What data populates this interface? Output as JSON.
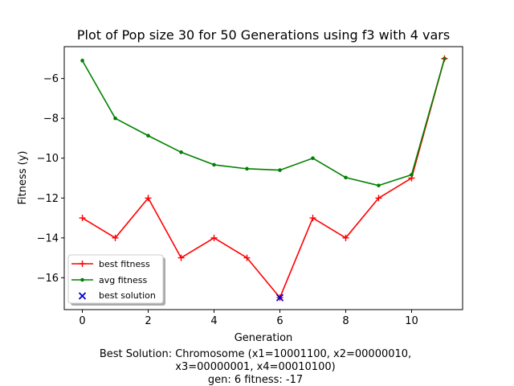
{
  "chart_data": {
    "type": "line",
    "title": "Plot of Pop size 30 for 50 Generations using f3 with 4 vars",
    "xlabel": "Generation",
    "ylabel": "Fitness (y)",
    "xlim": [
      -0.55,
      11.55
    ],
    "ylim": [
      -17.6,
      -4.4
    ],
    "xticks": [
      0,
      2,
      4,
      6,
      8,
      10
    ],
    "yticks": [
      -16,
      -14,
      -12,
      -10,
      -8,
      -6
    ],
    "xtick_labels": [
      "0",
      "2",
      "4",
      "6",
      "8",
      "10"
    ],
    "ytick_labels": [
      "−16",
      "−14",
      "−12",
      "−10",
      "−8",
      "−6"
    ],
    "grid": false,
    "legend_position": "lower-left",
    "series": [
      {
        "name": "best fitness",
        "color": "#ff0000",
        "marker": "plus",
        "x": [
          0,
          1,
          2,
          3,
          4,
          5,
          6,
          7,
          8,
          9,
          10,
          11
        ],
        "y": [
          -13,
          -14,
          -12,
          -15,
          -14,
          -15,
          -17,
          -13,
          -14,
          -12,
          -11,
          -5
        ]
      },
      {
        "name": "avg fitness",
        "color": "#008000",
        "marker": "dot",
        "x": [
          0,
          1,
          2,
          3,
          4,
          5,
          6,
          7,
          8,
          9,
          10,
          11
        ],
        "y": [
          -5.1,
          -8.0,
          -8.87,
          -9.7,
          -10.33,
          -10.53,
          -10.6,
          -10.0,
          -10.97,
          -11.37,
          -10.83,
          -5.0
        ]
      }
    ],
    "best_solution": {
      "name": "best solution",
      "color": "#0000cc",
      "marker": "x",
      "x": 6,
      "y": -17
    },
    "caption_lines": [
      "Best Solution: Chromosome (x1=10001100, x2=00000010,",
      "x3=00000001, x4=00010100)",
      "gen: 6 fitness: -17"
    ]
  }
}
